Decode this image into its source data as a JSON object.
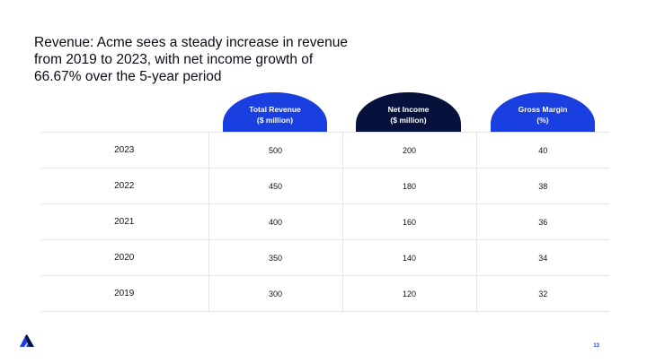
{
  "slide": {
    "title_lines": [
      "Revenue: Acme sees a steady increase in revenue",
      "from 2019 to 2023, with net income growth of",
      "66.67% over the 5-year period"
    ],
    "page_number": "13"
  },
  "colors": {
    "accent_blue": "#1a3fe0",
    "navy": "#07123c"
  },
  "table": {
    "columns": [
      {
        "line1": "Total Revenue",
        "line2": "($ million)",
        "color": "#1a3fe0"
      },
      {
        "line1": "Net Income",
        "line2": "($ million)",
        "color": "#07123c"
      },
      {
        "line1": "Gross Margin",
        "line2": "(%)",
        "color": "#1a3fe0"
      }
    ],
    "rows": [
      {
        "year": "2023",
        "revenue": "500",
        "net_income": "200",
        "gross_margin": "40"
      },
      {
        "year": "2022",
        "revenue": "450",
        "net_income": "180",
        "gross_margin": "38"
      },
      {
        "year": "2021",
        "revenue": "400",
        "net_income": "160",
        "gross_margin": "36"
      },
      {
        "year": "2020",
        "revenue": "350",
        "net_income": "140",
        "gross_margin": "34"
      },
      {
        "year": "2019",
        "revenue": "300",
        "net_income": "120",
        "gross_margin": "32"
      }
    ]
  },
  "logo": {
    "icon": "mountain-logo-icon"
  }
}
